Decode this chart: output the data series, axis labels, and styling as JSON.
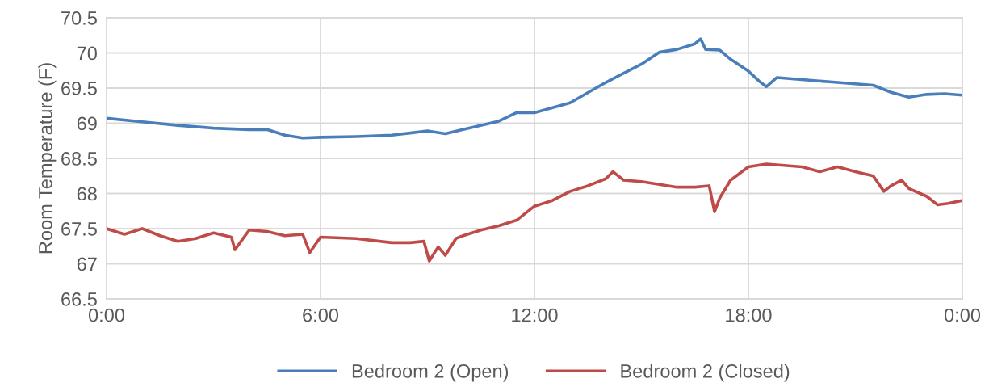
{
  "chart_data": {
    "type": "line",
    "ylabel": "Room Temperature (F)",
    "xlim": [
      0,
      24
    ],
    "xticks": [
      {
        "value": 0,
        "label": "0:00"
      },
      {
        "value": 6,
        "label": "6:00"
      },
      {
        "value": 12,
        "label": "12:00"
      },
      {
        "value": 18,
        "label": "18:00"
      },
      {
        "value": 24,
        "label": "0:00"
      }
    ],
    "ylim": [
      66.5,
      70.5
    ],
    "yticks": [
      66.5,
      67,
      67.5,
      68,
      68.5,
      69,
      69.5,
      70,
      70.5
    ],
    "grid": true,
    "legend": "bottom",
    "marker": "none",
    "line_style": "solid",
    "series": [
      {
        "name": "Bedroom 2 (Open)",
        "color": "#4a7ebb",
        "x": [
          0,
          1,
          2,
          3,
          4,
          4.5,
          5,
          5.5,
          6,
          7,
          8,
          9,
          9.5,
          10,
          11,
          11.5,
          12,
          13,
          14,
          15,
          15.5,
          16,
          16.5,
          16.66,
          16.8,
          17.2,
          17.5,
          18,
          18.3,
          18.5,
          18.8,
          19.5,
          20.5,
          21.5,
          22,
          22.5,
          23,
          23.5,
          24
        ],
        "values": [
          69.07,
          69.02,
          68.97,
          68.93,
          68.91,
          68.91,
          68.83,
          68.79,
          68.8,
          68.81,
          68.83,
          68.89,
          68.85,
          68.91,
          69.03,
          69.15,
          69.15,
          69.29,
          69.58,
          69.84,
          70.01,
          70.05,
          70.13,
          70.2,
          70.05,
          70.04,
          69.91,
          69.74,
          69.6,
          69.52,
          69.65,
          69.62,
          69.58,
          69.54,
          69.44,
          69.37,
          69.41,
          69.42,
          69.4
        ]
      },
      {
        "name": "Bedroom 2 (Closed)",
        "color": "#be4b48",
        "x": [
          0,
          0.5,
          1,
          1.5,
          2,
          2.5,
          3,
          3.5,
          3.6,
          4,
          4.5,
          5,
          5.5,
          5.7,
          6,
          7,
          8,
          8.5,
          8.9,
          9.05,
          9.3,
          9.5,
          9.8,
          10,
          10.5,
          11,
          11.5,
          12,
          12.5,
          13,
          13.5,
          14,
          14.2,
          14.5,
          15,
          15.5,
          16,
          16.5,
          16.9,
          17.05,
          17.2,
          17.5,
          18,
          18.5,
          19,
          19.5,
          20,
          20.5,
          21,
          21.5,
          21.8,
          22,
          22.3,
          22.5,
          23,
          23.3,
          23.6,
          24
        ],
        "values": [
          67.5,
          67.42,
          67.5,
          67.4,
          67.32,
          67.36,
          67.44,
          67.38,
          67.2,
          67.48,
          67.46,
          67.4,
          67.42,
          67.16,
          67.38,
          67.36,
          67.3,
          67.3,
          67.32,
          67.04,
          67.24,
          67.12,
          67.36,
          67.4,
          67.48,
          67.54,
          67.62,
          67.82,
          67.9,
          68.03,
          68.11,
          68.21,
          68.31,
          68.19,
          68.17,
          68.13,
          68.09,
          68.09,
          68.11,
          67.74,
          67.94,
          68.19,
          68.38,
          68.42,
          68.4,
          68.38,
          68.31,
          68.38,
          68.31,
          68.25,
          68.03,
          68.11,
          68.19,
          68.07,
          67.96,
          67.84,
          67.86,
          67.9
        ]
      }
    ]
  }
}
